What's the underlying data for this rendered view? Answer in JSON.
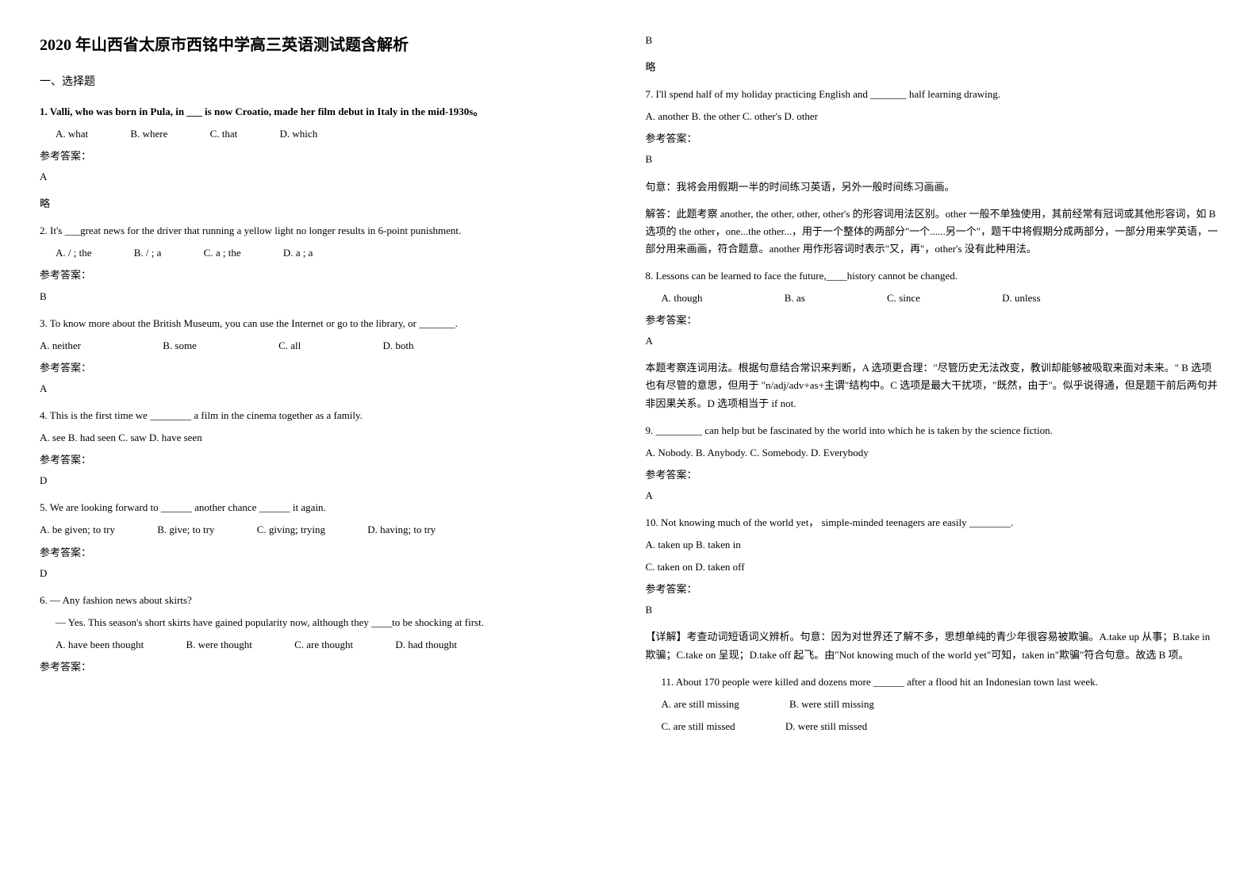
{
  "title": "2020 年山西省太原市西铭中学高三英语测试题含解析",
  "section1": "一、选择题",
  "q1": {
    "text": "1. Valli, who was born in Pula, in ___ is now Croatio, made her film debut in Italy in the mid-1930s。",
    "optA": "A. what",
    "optB": "B. where",
    "optC": "C. that",
    "optD": "D. which",
    "answerLabel": "参考答案：",
    "answer": "A",
    "note": "略"
  },
  "q2": {
    "text": "2. It's ___great news for the driver that running a yellow light no longer results in    6-point punishment.",
    "optA": "A. / ; the",
    "optB": "B. / ; a",
    "optC": "C. a ; the",
    "optD": "D. a ; a",
    "answerLabel": "参考答案：",
    "answer": "B"
  },
  "q3": {
    "text": "3. To know more about the British Museum, you can use the Internet or go to the library, or _______.",
    "optA": "A. neither",
    "optB": "B. some",
    "optC": "C. all",
    "optD": "D. both",
    "answerLabel": "参考答案：",
    "answer": "A"
  },
  "q4": {
    "text": "4. This is the first time we ________ a film in the cinema together as a family.",
    "options": "A. see   B. had seen C. saw D. have seen",
    "answerLabel": "参考答案：",
    "answer": "D"
  },
  "q5": {
    "text": "5. We are looking forward to ______ another chance ______ it again.",
    "optA": "A. be given; to try",
    "optB": "B. give; to try",
    "optC": "C. giving; trying",
    "optD": "D. having; to try",
    "answerLabel": "参考答案：",
    "answer": "D"
  },
  "q6": {
    "line1": "6. — Any fashion news about skirts?",
    "line2": "— Yes. This season's short skirts have gained popularity now, although they ____to be shocking at first.",
    "optA": "A. have been thought",
    "optB": "B. were thought",
    "optC": "C. are thought",
    "optD": "D. had thought",
    "answerLabel": "参考答案：",
    "answer": "B",
    "note": "略"
  },
  "q7": {
    "text": "7. I'll spend half of my holiday practicing English and _______ half learning drawing.",
    "options": "A. another  B. the other  C. other's  D. other",
    "answerLabel": "参考答案：",
    "answer": "B",
    "exp1": "句意：我将会用假期一半的时间练习英语，另外一般时间练习画画。",
    "exp2": "解答：此题考察 another, the other, other, other's 的形容词用法区别。other 一般不单独使用，其前经常有冠词或其他形容词，如 B 选项的 the other，one...the other...，用于一个整体的两部分\"一个......另一个\"，题干中将假期分成两部分，一部分用来学英语，一部分用来画画，符合题意。another 用作形容词时表示\"又，再\"，other's 没有此种用法。"
  },
  "q8": {
    "text": "8. Lessons can be learned to face the future,____history cannot be changed.",
    "optA": "A. though",
    "optB": "B. as",
    "optC": "C. since",
    "optD": "D. unless",
    "answerLabel": "参考答案：",
    "answer": "A",
    "exp": "本题考察连词用法。根据句意结合常识来判断，A 选项更合理：\"尽管历史无法改变，教训却能够被吸取来面对未来。\" B 选项也有尽管的意思，但用于 \"n/adj/adv+as+主谓\"结构中。C 选项是最大干扰项，\"既然，由于\"。似乎说得通，但是题干前后两句并非因果关系。D 选项相当于 if not."
  },
  "q9": {
    "text": "9. _________ can help but be fascinated by the world into which he is taken by the science fiction.",
    "options": "A. Nobody.   B. Anybody.   C. Somebody.  D. Everybody",
    "answerLabel": "参考答案：",
    "answer": "A"
  },
  "q10": {
    "text": "10. Not knowing much of the world yet， simple-minded teenagers are easily ________.",
    "line1": "A. taken up     B. taken in",
    "line2": "C. taken on     D. taken off",
    "answerLabel": "参考答案：",
    "answer": "B",
    "exp": "【详解】考查动词短语词义辨析。句意：因为对世界还了解不多，思想单纯的青少年很容易被欺骗。A.take up 从事；B.take in 欺骗；C.take on 呈现；D.take off 起飞。由\"Not knowing much of the world yet\"可知，taken in\"欺骗\"符合句意。故选 B 项。"
  },
  "q11": {
    "text": "11. About 170 people were killed and dozens more ______ after a flood hit an Indonesian town last week.",
    "optA": "A. are still missing",
    "optB": "B. were still missing",
    "optC": "C. are still missed",
    "optD": "D. were still missed"
  }
}
